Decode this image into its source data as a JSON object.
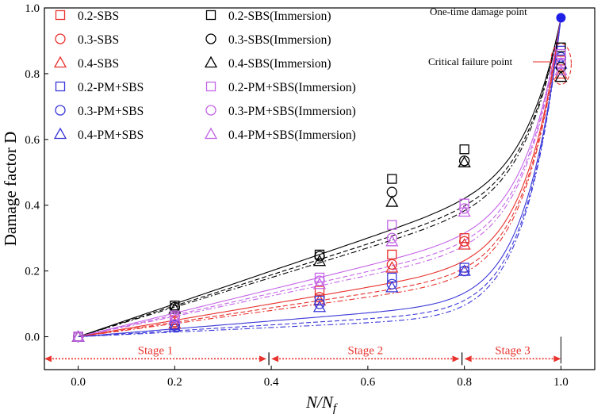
{
  "colors": {
    "sbs": "#e8322d",
    "pm": "#3a37d8",
    "sbs_imm": "#000000",
    "pm_imm": "#c464e6",
    "point": "#1f1fe8",
    "stage": "#e8322d"
  },
  "chart_data": {
    "type": "scatter",
    "title": "",
    "xlabel": "N/N",
    "xlabel_subscript": "f",
    "ylabel": "Damage factor D",
    "xlim": [
      -0.07,
      1.07
    ],
    "ylim": [
      -0.1,
      1.0
    ],
    "x_ticks": [
      0.0,
      0.2,
      0.4,
      0.6,
      0.8,
      1.0
    ],
    "x_tick_labels": [
      "0.0",
      "0.2",
      "0.4",
      "0.6",
      "0.8",
      "1.0"
    ],
    "y_ticks": [
      0.0,
      0.2,
      0.4,
      0.6,
      0.8,
      1.0
    ],
    "y_tick_labels": [
      "0.0",
      "0.2",
      "0.4",
      "0.6",
      "0.8",
      "1.0"
    ],
    "series": [
      {
        "name": "0.2-SBS",
        "marker": "square",
        "group": "sbs",
        "line": "solid",
        "x": [
          0,
          0.2,
          0.5,
          0.65,
          0.8,
          1.0
        ],
        "y": [
          0,
          0.05,
          0.14,
          0.25,
          0.3,
          0.84
        ]
      },
      {
        "name": "0.3-SBS",
        "marker": "circle",
        "group": "sbs",
        "line": "dash",
        "x": [
          0,
          0.2,
          0.5,
          0.65,
          0.8,
          1.0
        ],
        "y": [
          0,
          0.045,
          0.12,
          0.22,
          0.29,
          0.82
        ]
      },
      {
        "name": "0.4-SBS",
        "marker": "triangle",
        "group": "sbs",
        "line": "dashdot",
        "x": [
          0,
          0.2,
          0.5,
          0.65,
          0.8,
          1.0
        ],
        "y": [
          0,
          0.04,
          0.11,
          0.21,
          0.28,
          0.8
        ]
      },
      {
        "name": "0.2-PM+SBS",
        "marker": "square",
        "group": "pm",
        "line": "solid",
        "x": [
          0,
          0.2,
          0.5,
          0.65,
          0.8,
          1.0
        ],
        "y": [
          0,
          0.035,
          0.11,
          0.18,
          0.21,
          0.87
        ]
      },
      {
        "name": "0.3-PM+SBS",
        "marker": "circle",
        "group": "pm",
        "line": "dash",
        "x": [
          0,
          0.2,
          0.5,
          0.65,
          0.8,
          1.0
        ],
        "y": [
          0,
          0.035,
          0.1,
          0.16,
          0.2,
          0.85
        ]
      },
      {
        "name": "0.4-PM+SBS",
        "marker": "triangle",
        "group": "pm",
        "line": "dashdot",
        "x": [
          0,
          0.2,
          0.5,
          0.65,
          0.8,
          1.0
        ],
        "y": [
          0,
          0.03,
          0.09,
          0.15,
          0.2,
          0.83
        ]
      },
      {
        "name": "0.2-SBS(Immersion)",
        "marker": "square",
        "group": "sbs_imm",
        "line": "solid",
        "x": [
          0,
          0.2,
          0.5,
          0.65,
          0.8,
          1.0
        ],
        "y": [
          0,
          0.095,
          0.25,
          0.48,
          0.57,
          0.88
        ]
      },
      {
        "name": "0.3-SBS(Immersion)",
        "marker": "circle",
        "group": "sbs_imm",
        "line": "dash",
        "x": [
          0,
          0.2,
          0.5,
          0.65,
          0.8,
          1.0
        ],
        "y": [
          0,
          0.09,
          0.245,
          0.44,
          0.535,
          0.82
        ]
      },
      {
        "name": "0.4-SBS(Immersion)",
        "marker": "triangle",
        "group": "sbs_imm",
        "line": "dashdot",
        "x": [
          0,
          0.2,
          0.5,
          0.65,
          0.8,
          1.0
        ],
        "y": [
          0,
          0.085,
          0.23,
          0.41,
          0.53,
          0.79
        ]
      },
      {
        "name": "0.2-PM+SBS(Immersion)",
        "marker": "square",
        "group": "pm_imm",
        "line": "solid",
        "x": [
          0,
          0.2,
          0.5,
          0.65,
          0.8,
          1.0
        ],
        "y": [
          0,
          0.065,
          0.18,
          0.34,
          0.405,
          0.86
        ]
      },
      {
        "name": "0.3-PM+SBS(Immersion)",
        "marker": "circle",
        "group": "pm_imm",
        "line": "dash",
        "x": [
          0,
          0.2,
          0.5,
          0.65,
          0.8,
          1.0
        ],
        "y": [
          0,
          0.06,
          0.17,
          0.3,
          0.39,
          0.83
        ]
      },
      {
        "name": "0.4-PM+SBS(Immersion)",
        "marker": "triangle",
        "group": "pm_imm",
        "line": "dashdot",
        "x": [
          0,
          0.2,
          0.5,
          0.65,
          0.8,
          1.0
        ],
        "y": [
          0,
          0.055,
          0.16,
          0.29,
          0.38,
          0.81
        ]
      }
    ],
    "fit_curves": [
      {
        "group": "sbs_imm",
        "line": "solid",
        "p": 0.2,
        "q": 0.1
      },
      {
        "group": "sbs_imm",
        "line": "dash",
        "p": 0.23,
        "q": 0.11
      },
      {
        "group": "sbs_imm",
        "line": "dashdot",
        "p": 0.25,
        "q": 0.12
      },
      {
        "group": "pm_imm",
        "line": "solid",
        "p": 0.34,
        "q": 0.14
      },
      {
        "group": "pm_imm",
        "line": "dash",
        "p": 0.37,
        "q": 0.15
      },
      {
        "group": "pm_imm",
        "line": "dashdot",
        "p": 0.39,
        "q": 0.16
      },
      {
        "group": "sbs",
        "line": "solid",
        "p": 0.45,
        "q": 0.17
      },
      {
        "group": "sbs",
        "line": "dash",
        "p": 0.48,
        "q": 0.18
      },
      {
        "group": "sbs",
        "line": "dashdot",
        "p": 0.5,
        "q": 0.19
      },
      {
        "group": "pm",
        "line": "solid",
        "p": 0.58,
        "q": 0.2
      },
      {
        "group": "pm",
        "line": "dash",
        "p": 0.61,
        "q": 0.21
      },
      {
        "group": "pm",
        "line": "dashdot",
        "p": 0.63,
        "q": 0.22
      }
    ],
    "annotations": {
      "one_time_damage_point": {
        "label": "One-time damage point",
        "x": 1.0,
        "y": 0.97
      },
      "critical_failure_point": {
        "label": "Critical failure point",
        "x": 1.0,
        "y": 0.83
      }
    },
    "stages": [
      {
        "label": "Stage 1",
        "from": -0.07,
        "to": 0.39
      },
      {
        "label": "Stage 2",
        "from": 0.4,
        "to": 0.79
      },
      {
        "label": "Stage 3",
        "from": 0.8,
        "to": 1.0
      }
    ]
  }
}
